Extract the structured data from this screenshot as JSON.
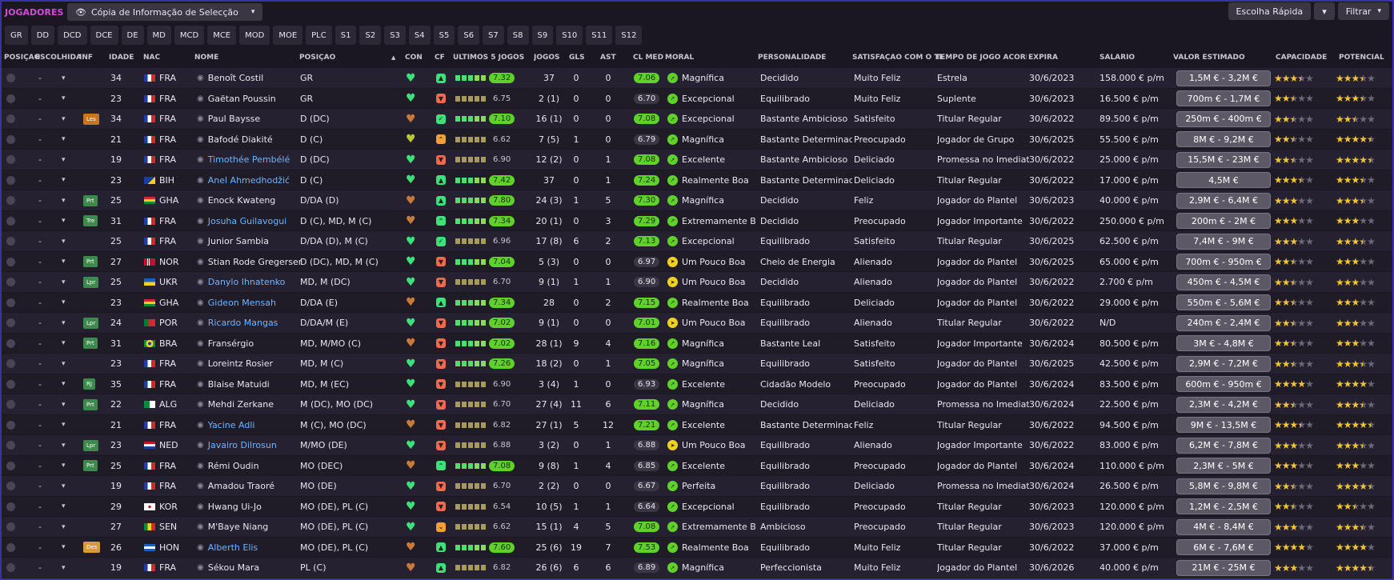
{
  "header": {
    "title": "JOGADORES",
    "copy_label": "Cópia de Informação de Selecção",
    "quick_choice": "Escolha Rápida",
    "filter": "Filtrar"
  },
  "tabs": [
    "GR",
    "DD",
    "DCD",
    "DCE",
    "DE",
    "MD",
    "MCD",
    "MCE",
    "MOD",
    "MOE",
    "PLC",
    "S1",
    "S2",
    "S3",
    "S4",
    "S5",
    "S6",
    "S7",
    "S8",
    "S9",
    "S10",
    "S11",
    "S12"
  ],
  "columns": {
    "posicao": "POSIÇÃO",
    "escolhida": "ESCOLHIDA",
    "inf": "INF",
    "idade": "IDADE",
    "nac": "NAC",
    "nome": "NOME",
    "pos": "POSIÇÃO",
    "con": "CON",
    "cf": "CF",
    "ultimos": "ÚLTIMOS 5 JOGOS",
    "jogos": "JOGOS",
    "gls": "GLS",
    "ast": "AST",
    "clmed": "CL MED",
    "moral": "MORAL",
    "personalidade": "PERSONALIDADE",
    "satisfacao": "SATISFAÇÃO COM O TE...",
    "tempo": "TEMPO DE JOGO ACORDA...",
    "expira": "EXPIRA",
    "salario": "SALÁRIO",
    "valor": "VALOR ESTIMADO",
    "capacidade": "CAPACIDADE",
    "potencial": "POTENCIAL"
  },
  "colors": {
    "accent": "#d04cd8",
    "heart_green": "#3ee07a",
    "heart_brown": "#c97a3a",
    "rating_green": "#5fd12a",
    "link_blue": "#6fb4ff"
  },
  "players": [
    {
      "dash": "-",
      "inf": "",
      "age": "34",
      "nat": "FRA",
      "name": "Benoît Costil",
      "blue": false,
      "pos": "GR",
      "con": "green",
      "cf": "green",
      "form": "7.32",
      "formHi": true,
      "games": "37",
      "gls": "0",
      "ast": "0",
      "avg": "7.06",
      "avgHi": true,
      "moral": "Magnífica",
      "moralC": "green",
      "pers": "Decidido",
      "sat": "Muito Feliz",
      "time": "Estrela",
      "exp": "30/6/2023",
      "sal": "158.000 € p/m",
      "val": "1,5M € - 3,2M €",
      "cap": 3.5,
      "pot": 3.5
    },
    {
      "dash": "-",
      "inf": "",
      "age": "23",
      "nat": "FRA",
      "name": "Gaëtan Poussin",
      "blue": false,
      "pos": "GR",
      "con": "green",
      "cf": "red",
      "form": "6.75",
      "formHi": false,
      "games": "2 (1)",
      "gls": "0",
      "ast": "0",
      "avg": "6.70",
      "avgHi": false,
      "moral": "Excepcional",
      "moralC": "green",
      "pers": "Equilibrado",
      "sat": "Muito Feliz",
      "time": "Suplente",
      "exp": "30/6/2023",
      "sal": "16.500 € p/m",
      "val": "700m € - 1,7M €",
      "cap": 2.5,
      "pot": 3.5
    },
    {
      "dash": "-",
      "inf": "Les",
      "age": "34",
      "nat": "FRA",
      "name": "Paul Baysse",
      "blue": false,
      "pos": "D (DC)",
      "con": "brown",
      "cf": "greenV",
      "form": "7.10",
      "formHi": true,
      "games": "16 (1)",
      "gls": "0",
      "ast": "0",
      "avg": "7.08",
      "avgHi": true,
      "moral": "Excepcional",
      "moralC": "green",
      "pers": "Bastante Ambicioso",
      "sat": "Satisfeito",
      "time": "Titular Regular",
      "exp": "30/6/2022",
      "sal": "89.500 € p/m",
      "val": "250m € - 400m €",
      "cap": 2.5,
      "pot": 2.5
    },
    {
      "dash": "-",
      "inf": "",
      "age": "21",
      "nat": "FRA",
      "name": "Bafodé Diakité",
      "blue": false,
      "pos": "D (C)",
      "con": "yellow",
      "cf": "orangeUp",
      "form": "6.62",
      "formHi": false,
      "games": "7 (5)",
      "gls": "1",
      "ast": "0",
      "avg": "6.79",
      "avgHi": false,
      "moral": "Magnífica",
      "moralC": "green",
      "pers": "Bastante Determinado",
      "sat": "Preocupado",
      "time": "Jogador de Grupo",
      "exp": "30/6/2025",
      "sal": "55.500 € p/m",
      "val": "8M € - 9,2M €",
      "cap": 2.5,
      "pot": 4.5
    },
    {
      "dash": "-",
      "inf": "",
      "age": "19",
      "nat": "FRA",
      "name": "Timothée Pembélé",
      "blue": true,
      "pos": "D (DC)",
      "con": "green",
      "cf": "red",
      "form": "6.90",
      "formHi": false,
      "games": "12 (2)",
      "gls": "0",
      "ast": "1",
      "avg": "7.08",
      "avgHi": true,
      "moral": "Excelente",
      "moralC": "green",
      "pers": "Bastante Ambicioso",
      "sat": "Deliciado",
      "time": "Promessa no Imediato",
      "exp": "30/6/2022",
      "sal": "25.000 € p/m",
      "val": "15,5M € - 23M €",
      "cap": 2.5,
      "pot": 4.5
    },
    {
      "dash": "-",
      "inf": "",
      "age": "23",
      "nat": "BIH",
      "name": "Anel Ahmedhodžić",
      "blue": true,
      "pos": "D (C)",
      "con": "green",
      "cf": "green",
      "form": "7.42",
      "formHi": true,
      "games": "37",
      "gls": "0",
      "ast": "1",
      "avg": "7.24",
      "avgHi": true,
      "moral": "Realmente Boa",
      "moralC": "green",
      "pers": "Bastante Determinado",
      "sat": "Deliciado",
      "time": "Titular Regular",
      "exp": "30/6/2022",
      "sal": "17.000 € p/m",
      "val": "4,5M €",
      "cap": 3.5,
      "pot": 3.5
    },
    {
      "dash": "-",
      "inf": "Prt",
      "age": "25",
      "nat": "GHA",
      "name": "Enock Kwateng",
      "blue": false,
      "pos": "D/DA (D)",
      "con": "brown",
      "cf": "green",
      "form": "7.80",
      "formHi": true,
      "games": "24 (3)",
      "gls": "1",
      "ast": "5",
      "avg": "7.30",
      "avgHi": true,
      "moral": "Magnífica",
      "moralC": "green",
      "pers": "Decidido",
      "sat": "Feliz",
      "time": "Jogador do Plantel",
      "exp": "30/6/2023",
      "sal": "40.000 € p/m",
      "val": "2,9M € - 6,4M €",
      "cap": 3,
      "pot": 3.5
    },
    {
      "dash": "-",
      "inf": "Tre",
      "age": "31",
      "nat": "FRA",
      "name": "Josuha Guilavogui",
      "blue": true,
      "pos": "D (C), MD, M (C)",
      "con": "brown",
      "cf": "greenUp",
      "form": "7.34",
      "formHi": true,
      "games": "20 (1)",
      "gls": "0",
      "ast": "3",
      "avg": "7.29",
      "avgHi": true,
      "moral": "Extremamente B...",
      "moralC": "green",
      "pers": "Decidido",
      "sat": "Preocupado",
      "time": "Jogador Importante",
      "exp": "30/6/2022",
      "sal": "250.000 € p/m",
      "val": "200m € - 2M €",
      "cap": 3,
      "pot": 3
    },
    {
      "dash": "-",
      "inf": "",
      "age": "25",
      "nat": "FRA",
      "name": "Junior Sambia",
      "blue": false,
      "pos": "D/DA (D), M (C)",
      "con": "green",
      "cf": "greenV",
      "form": "6.96",
      "formHi": false,
      "games": "17 (8)",
      "gls": "6",
      "ast": "2",
      "avg": "7.13",
      "avgHi": true,
      "moral": "Excepcional",
      "moralC": "green",
      "pers": "Equilibrado",
      "sat": "Satisfeito",
      "time": "Titular Regular",
      "exp": "30/6/2025",
      "sal": "62.500 € p/m",
      "val": "7,4M € - 9M €",
      "cap": 3,
      "pot": 3.5
    },
    {
      "dash": "-",
      "inf": "Prt",
      "age": "27",
      "nat": "NOR",
      "name": "Stian Rode Gregersen",
      "blue": false,
      "pos": "D (DC), MD, M (C)",
      "con": "green",
      "cf": "red",
      "form": "7.04",
      "formHi": true,
      "games": "5 (3)",
      "gls": "0",
      "ast": "0",
      "avg": "6.97",
      "avgHi": false,
      "moral": "Um Pouco Boa",
      "moralC": "yellow",
      "pers": "Cheio de Energia",
      "sat": "Alienado",
      "time": "Jogador do Plantel",
      "exp": "30/6/2025",
      "sal": "65.000 € p/m",
      "val": "700m € - 950m €",
      "cap": 2.5,
      "pot": 3
    },
    {
      "dash": "-",
      "inf": "Lpr",
      "age": "25",
      "nat": "UKR",
      "name": "Danylo Ihnatenko",
      "blue": true,
      "pos": "MD, M (DC)",
      "con": "green",
      "cf": "red",
      "form": "6.70",
      "formHi": false,
      "games": "9 (1)",
      "gls": "1",
      "ast": "1",
      "avg": "6.90",
      "avgHi": false,
      "moral": "Um Pouco Boa",
      "moralC": "yellow",
      "pers": "Decidido",
      "sat": "Alienado",
      "time": "Jogador do Plantel",
      "exp": "30/6/2022",
      "sal": "2.700 € p/m",
      "val": "450m € - 4,5M €",
      "cap": 2.5,
      "pot": 3
    },
    {
      "dash": "-",
      "inf": "",
      "age": "23",
      "nat": "GHA",
      "name": "Gideon Mensah",
      "blue": true,
      "pos": "D/DA (E)",
      "con": "brown",
      "cf": "green",
      "form": "7.34",
      "formHi": true,
      "games": "28",
      "gls": "0",
      "ast": "2",
      "avg": "7.15",
      "avgHi": true,
      "moral": "Realmente Boa",
      "moralC": "green",
      "pers": "Equilibrado",
      "sat": "Deliciado",
      "time": "Jogador do Plantel",
      "exp": "30/6/2022",
      "sal": "29.000 € p/m",
      "val": "550m € - 5,6M €",
      "cap": 2.5,
      "pot": 3
    },
    {
      "dash": "-",
      "inf": "Lpr",
      "age": "24",
      "nat": "POR",
      "name": "Ricardo Mangas",
      "blue": true,
      "pos": "D/DA/M (E)",
      "con": "green",
      "cf": "red",
      "form": "7.02",
      "formHi": true,
      "games": "9 (1)",
      "gls": "0",
      "ast": "0",
      "avg": "7.01",
      "avgHi": true,
      "moral": "Um Pouco Boa",
      "moralC": "yellow",
      "pers": "Equilibrado",
      "sat": "Alienado",
      "time": "Titular Regular",
      "exp": "30/6/2022",
      "sal": "N/D",
      "val": "240m € - 2,4M €",
      "cap": 2.5,
      "pot": 3
    },
    {
      "dash": "-",
      "inf": "Prt",
      "age": "31",
      "nat": "BRA",
      "name": "Fransérgio",
      "blue": false,
      "pos": "MD, M/MO (C)",
      "con": "brown",
      "cf": "red",
      "form": "7.02",
      "formHi": true,
      "games": "28 (1)",
      "gls": "9",
      "ast": "4",
      "avg": "7.16",
      "avgHi": true,
      "moral": "Magnífica",
      "moralC": "green",
      "pers": "Bastante Leal",
      "sat": "Satisfeito",
      "time": "Jogador Importante",
      "exp": "30/6/2024",
      "sal": "80.500 € p/m",
      "val": "3M € - 4,8M €",
      "cap": 2.5,
      "pot": 3
    },
    {
      "dash": "-",
      "inf": "",
      "age": "23",
      "nat": "FRA",
      "name": "Loreintz Rosier",
      "blue": false,
      "pos": "MD, M (C)",
      "con": "green",
      "cf": "red",
      "form": "7.26",
      "formHi": true,
      "games": "18 (2)",
      "gls": "0",
      "ast": "1",
      "avg": "7.05",
      "avgHi": true,
      "moral": "Magnífica",
      "moralC": "green",
      "pers": "Equilibrado",
      "sat": "Satisfeito",
      "time": "Jogador do Plantel",
      "exp": "30/6/2025",
      "sal": "42.500 € p/m",
      "val": "2,9M € - 7,2M €",
      "cap": 2.5,
      "pot": 3.5
    },
    {
      "dash": "-",
      "inf": "RJ",
      "age": "35",
      "nat": "FRA",
      "name": "Blaise Matuidi",
      "blue": false,
      "pos": "MD, M (EC)",
      "con": "green",
      "cf": "red",
      "form": "6.90",
      "formHi": false,
      "games": "3 (4)",
      "gls": "1",
      "ast": "0",
      "avg": "6.93",
      "avgHi": false,
      "moral": "Excelente",
      "moralC": "green",
      "pers": "Cidadão Modelo",
      "sat": "Preocupado",
      "time": "Jogador do Plantel",
      "exp": "30/6/2024",
      "sal": "83.500 € p/m",
      "val": "600m € - 950m €",
      "cap": 4,
      "pot": 4
    },
    {
      "dash": "-",
      "inf": "Prt",
      "age": "22",
      "nat": "ALG",
      "name": "Mehdi Zerkane",
      "blue": false,
      "pos": "M (DC), MO (DC)",
      "con": "green",
      "cf": "red",
      "form": "6.70",
      "formHi": false,
      "games": "27 (4)",
      "gls": "11",
      "ast": "6",
      "avg": "7.11",
      "avgHi": true,
      "moral": "Magnífica",
      "moralC": "green",
      "pers": "Decidido",
      "sat": "Deliciado",
      "time": "Promessa no Imediato",
      "exp": "30/6/2024",
      "sal": "22.500 € p/m",
      "val": "2,3M € - 4,2M €",
      "cap": 2.5,
      "pot": 3.5
    },
    {
      "dash": "-",
      "inf": "",
      "age": "21",
      "nat": "FRA",
      "name": "Yacine Adli",
      "blue": true,
      "pos": "M (C), MO (DC)",
      "con": "brown",
      "cf": "red",
      "form": "6.82",
      "formHi": false,
      "games": "27 (1)",
      "gls": "5",
      "ast": "12",
      "avg": "7.21",
      "avgHi": true,
      "moral": "Excelente",
      "moralC": "green",
      "pers": "Bastante Determinado",
      "sat": "Feliz",
      "time": "Titular Regular",
      "exp": "30/6/2022",
      "sal": "94.500 € p/m",
      "val": "9M € - 13,5M €",
      "cap": 3.5,
      "pot": 4.5
    },
    {
      "dash": "-",
      "inf": "Lpr",
      "age": "23",
      "nat": "NED",
      "name": "Javairo Dilrosun",
      "blue": true,
      "pos": "M/MO (DE)",
      "con": "green",
      "cf": "red",
      "form": "6.88",
      "formHi": false,
      "games": "3 (2)",
      "gls": "0",
      "ast": "1",
      "avg": "6.88",
      "avgHi": false,
      "moral": "Um Pouco Boa",
      "moralC": "yellow",
      "pers": "Equilibrado",
      "sat": "Alienado",
      "time": "Jogador Importante",
      "exp": "30/6/2022",
      "sal": "83.000 € p/m",
      "val": "6,2M € - 7,8M €",
      "cap": 3,
      "pot": 3.5
    },
    {
      "dash": "-",
      "inf": "Prt",
      "age": "25",
      "nat": "FRA",
      "name": "Rémi Oudin",
      "blue": false,
      "pos": "MO (DEC)",
      "con": "brown",
      "cf": "greenUp",
      "form": "7.08",
      "formHi": true,
      "games": "9 (8)",
      "gls": "1",
      "ast": "4",
      "avg": "6.85",
      "avgHi": false,
      "moral": "Excelente",
      "moralC": "green",
      "pers": "Equilibrado",
      "sat": "Preocupado",
      "time": "Jogador do Plantel",
      "exp": "30/6/2024",
      "sal": "110.000 € p/m",
      "val": "2,3M € - 5M €",
      "cap": 3,
      "pot": 3
    },
    {
      "dash": "-",
      "inf": "",
      "age": "19",
      "nat": "FRA",
      "name": "Amadou Traoré",
      "blue": false,
      "pos": "MO (DE)",
      "con": "green",
      "cf": "red",
      "form": "6.70",
      "formHi": false,
      "games": "2 (2)",
      "gls": "0",
      "ast": "0",
      "avg": "6.67",
      "avgHi": false,
      "moral": "Perfeita",
      "moralC": "green",
      "pers": "Equilibrado",
      "sat": "Deliciado",
      "time": "Promessa no Imediato",
      "exp": "30/6/2024",
      "sal": "26.500 € p/m",
      "val": "5,8M € - 9,8M €",
      "cap": 2.5,
      "pot": 4.5
    },
    {
      "dash": "-",
      "inf": "",
      "age": "29",
      "nat": "KOR",
      "name": "Hwang Ui-Jo",
      "blue": false,
      "pos": "MO (DE), PL (C)",
      "con": "green",
      "cf": "red",
      "form": "6.54",
      "formHi": false,
      "games": "10 (5)",
      "gls": "1",
      "ast": "1",
      "avg": "6.64",
      "avgHi": false,
      "moral": "Excepcional",
      "moralC": "green",
      "pers": "Equilibrado",
      "sat": "Preocupado",
      "time": "Titular Regular",
      "exp": "30/6/2023",
      "sal": "120.000 € p/m",
      "val": "1,2M € - 2,5M €",
      "cap": 2.5,
      "pot": 2.5
    },
    {
      "dash": "-",
      "inf": "",
      "age": "27",
      "nat": "SEN",
      "name": "M'Baye Niang",
      "blue": false,
      "pos": "MO (DE), PL (C)",
      "con": "green",
      "cf": "orangeV",
      "form": "6.62",
      "formHi": false,
      "games": "15 (1)",
      "gls": "4",
      "ast": "5",
      "avg": "7.08",
      "avgHi": true,
      "moral": "Extremamente B...",
      "moralC": "green",
      "pers": "Ambicioso",
      "sat": "Preocupado",
      "time": "Titular Regular",
      "exp": "30/6/2023",
      "sal": "120.000 € p/m",
      "val": "4M € - 8,4M €",
      "cap": 3,
      "pot": 3.5
    },
    {
      "dash": "-",
      "inf": "Des",
      "age": "26",
      "nat": "HON",
      "name": "Alberth Elis",
      "blue": true,
      "pos": "MO (DE), PL (C)",
      "con": "brown",
      "cf": "green",
      "form": "7.60",
      "formHi": true,
      "games": "25 (6)",
      "gls": "19",
      "ast": "7",
      "avg": "7.53",
      "avgHi": true,
      "moral": "Realmente Boa",
      "moralC": "green",
      "pers": "Equilibrado",
      "sat": "Muito Feliz",
      "time": "Titular Regular",
      "exp": "30/6/2022",
      "sal": "37.000 € p/m",
      "val": "6M € - 7,6M €",
      "cap": 4,
      "pot": 4
    },
    {
      "dash": "-",
      "inf": "",
      "age": "19",
      "nat": "FRA",
      "name": "Sékou Mara",
      "blue": false,
      "pos": "PL (C)",
      "con": "brown",
      "cf": "green",
      "form": "6.82",
      "formHi": false,
      "games": "26 (6)",
      "gls": "6",
      "ast": "6",
      "avg": "6.89",
      "avgHi": false,
      "moral": "Magnífica",
      "moralC": "green",
      "pers": "Perfeccionista",
      "sat": "Muito Feliz",
      "time": "Jogador do Plantel",
      "exp": "30/6/2026",
      "sal": "40.000 € p/m",
      "val": "21M € - 25M €",
      "cap": 3,
      "pot": 4.5
    }
  ]
}
